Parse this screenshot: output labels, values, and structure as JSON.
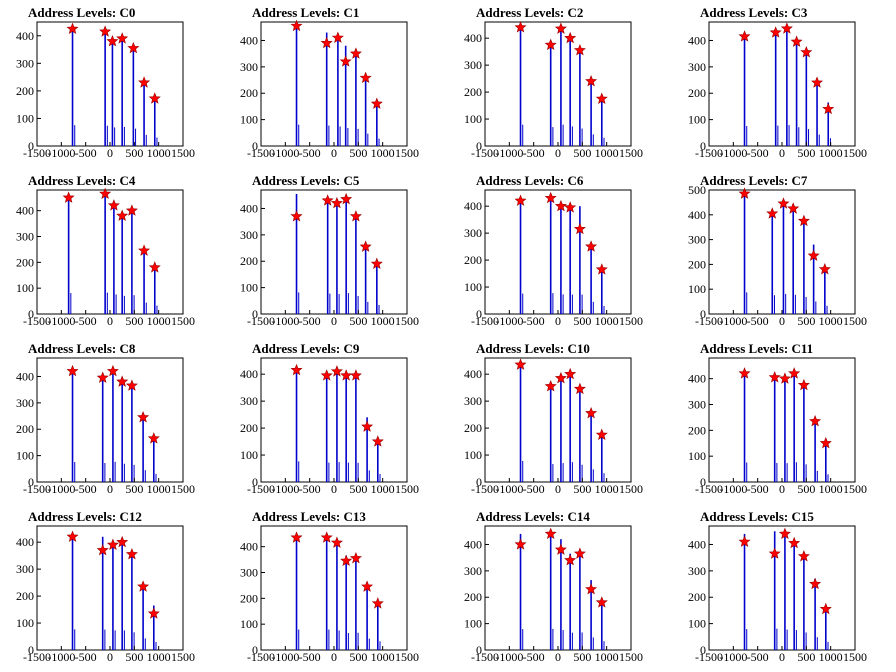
{
  "chart_data": [
    {
      "type": "bar",
      "title": "Address Levels: C0",
      "xlim": [
        -1500,
        1500
      ],
      "xticks": [
        -1500,
        -1000,
        -500,
        0,
        500,
        1000,
        1500
      ],
      "ylim": [
        0,
        450
      ],
      "yticks": [
        0,
        100,
        200,
        300,
        400
      ],
      "series": [
        {
          "x": [
            -770,
            -100,
            50,
            250,
            480,
            700,
            920
          ],
          "y": [
            420,
            410,
            375,
            385,
            350,
            225,
            170
          ]
        }
      ],
      "markers": [
        {
          "x": -770,
          "y": 425
        },
        {
          "x": -100,
          "y": 415
        },
        {
          "x": 50,
          "y": 380
        },
        {
          "x": 250,
          "y": 390
        },
        {
          "x": 480,
          "y": 355
        },
        {
          "x": 700,
          "y": 230
        },
        {
          "x": 920,
          "y": 172
        }
      ]
    },
    {
      "type": "bar",
      "title": "Address Levels: C1",
      "xlim": [
        -1500,
        1500
      ],
      "xticks": [
        -1500,
        -1000,
        -500,
        0,
        500,
        1000,
        1500
      ],
      "ylim": [
        0,
        470
      ],
      "yticks": [
        0,
        100,
        200,
        300,
        400
      ],
      "series": [
        {
          "x": [
            -770,
            -150,
            80,
            240,
            450,
            650,
            880
          ],
          "y": [
            450,
            430,
            410,
            380,
            360,
            260,
            155
          ]
        }
      ],
      "markers": [
        {
          "x": -770,
          "y": 455
        },
        {
          "x": -150,
          "y": 390
        },
        {
          "x": 80,
          "y": 410
        },
        {
          "x": 240,
          "y": 320
        },
        {
          "x": 450,
          "y": 350
        },
        {
          "x": 650,
          "y": 258
        },
        {
          "x": 880,
          "y": 160
        }
      ]
    },
    {
      "type": "bar",
      "title": "Address Levels: C2",
      "xlim": [
        -1500,
        1500
      ],
      "xticks": [
        -1500,
        -1000,
        -500,
        0,
        500,
        1000,
        1500
      ],
      "ylim": [
        0,
        460
      ],
      "yticks": [
        0,
        100,
        200,
        300,
        400
      ],
      "series": [
        {
          "x": [
            -770,
            -150,
            60,
            250,
            450,
            680,
            900
          ],
          "y": [
            440,
            390,
            440,
            405,
            360,
            240,
            170
          ]
        }
      ],
      "markers": [
        {
          "x": -770,
          "y": 440
        },
        {
          "x": -150,
          "y": 375
        },
        {
          "x": 60,
          "y": 435
        },
        {
          "x": 250,
          "y": 400
        },
        {
          "x": 450,
          "y": 355
        },
        {
          "x": 680,
          "y": 240
        },
        {
          "x": 900,
          "y": 175
        }
      ]
    },
    {
      "type": "bar",
      "title": "Address Levels: C3",
      "xlim": [
        -1500,
        1500
      ],
      "xticks": [
        -1500,
        -1000,
        -500,
        0,
        500,
        1000,
        1500
      ],
      "ylim": [
        0,
        470
      ],
      "yticks": [
        0,
        100,
        200,
        300,
        400
      ],
      "series": [
        {
          "x": [
            -770,
            -130,
            100,
            300,
            500,
            720,
            950
          ],
          "y": [
            420,
            430,
            440,
            395,
            355,
            240,
            165
          ]
        }
      ],
      "markers": [
        {
          "x": -770,
          "y": 415
        },
        {
          "x": -130,
          "y": 430
        },
        {
          "x": 100,
          "y": 445
        },
        {
          "x": 300,
          "y": 395
        },
        {
          "x": 500,
          "y": 355
        },
        {
          "x": 720,
          "y": 240
        },
        {
          "x": 950,
          "y": 140
        }
      ]
    },
    {
      "type": "bar",
      "title": "Address Levels: C4",
      "xlim": [
        -1500,
        1500
      ],
      "xticks": [
        -1500,
        -1000,
        -500,
        0,
        500,
        1000,
        1500
      ],
      "ylim": [
        0,
        480
      ],
      "yticks": [
        0,
        100,
        200,
        300,
        400
      ],
      "series": [
        {
          "x": [
            -850,
            -100,
            80,
            250,
            450,
            700,
            920
          ],
          "y": [
            450,
            460,
            420,
            390,
            405,
            245,
            180
          ]
        }
      ],
      "markers": [
        {
          "x": -850,
          "y": 450
        },
        {
          "x": -100,
          "y": 465
        },
        {
          "x": 80,
          "y": 420
        },
        {
          "x": 250,
          "y": 380
        },
        {
          "x": 450,
          "y": 400
        },
        {
          "x": 700,
          "y": 245
        },
        {
          "x": 920,
          "y": 180
        }
      ]
    },
    {
      "type": "bar",
      "title": "Address Levels: C5",
      "xlim": [
        -1500,
        1500
      ],
      "xticks": [
        -1500,
        -1000,
        -500,
        0,
        500,
        1000,
        1500
      ],
      "ylim": [
        0,
        470
      ],
      "yticks": [
        0,
        100,
        200,
        300,
        400
      ],
      "series": [
        {
          "x": [
            -770,
            -130,
            60,
            250,
            450,
            650,
            880
          ],
          "y": [
            455,
            430,
            420,
            440,
            380,
            255,
            190
          ]
        }
      ],
      "markers": [
        {
          "x": -770,
          "y": 370
        },
        {
          "x": -130,
          "y": 430
        },
        {
          "x": 60,
          "y": 420
        },
        {
          "x": 250,
          "y": 435
        },
        {
          "x": 450,
          "y": 370
        },
        {
          "x": 650,
          "y": 255
        },
        {
          "x": 880,
          "y": 190
        }
      ]
    },
    {
      "type": "bar",
      "title": "Address Levels: C6",
      "xlim": [
        -1500,
        1500
      ],
      "xticks": [
        -1500,
        -1000,
        -500,
        0,
        500,
        1000,
        1500
      ],
      "ylim": [
        0,
        460
      ],
      "yticks": [
        0,
        100,
        200,
        300,
        400
      ],
      "series": [
        {
          "x": [
            -770,
            -150,
            60,
            250,
            450,
            680,
            900
          ],
          "y": [
            420,
            430,
            405,
            400,
            400,
            250,
            165
          ]
        }
      ],
      "markers": [
        {
          "x": -770,
          "y": 420
        },
        {
          "x": -150,
          "y": 430
        },
        {
          "x": 60,
          "y": 400
        },
        {
          "x": 250,
          "y": 395
        },
        {
          "x": 450,
          "y": 315
        },
        {
          "x": 680,
          "y": 250
        },
        {
          "x": 900,
          "y": 165
        }
      ]
    },
    {
      "type": "bar",
      "title": "Address Levels: C7",
      "xlim": [
        -1500,
        1500
      ],
      "xticks": [
        -1500,
        -1000,
        -500,
        0,
        500,
        1000,
        1500
      ],
      "ylim": [
        0,
        500
      ],
      "yticks": [
        0,
        100,
        200,
        300,
        400,
        500
      ],
      "series": [
        {
          "x": [
            -770,
            -200,
            30,
            230,
            450,
            650,
            880
          ],
          "y": [
            485,
            420,
            450,
            430,
            380,
            280,
            185
          ]
        }
      ],
      "markers": [
        {
          "x": -770,
          "y": 485
        },
        {
          "x": -200,
          "y": 405
        },
        {
          "x": 30,
          "y": 445
        },
        {
          "x": 230,
          "y": 425
        },
        {
          "x": 450,
          "y": 375
        },
        {
          "x": 650,
          "y": 235
        },
        {
          "x": 880,
          "y": 180
        }
      ]
    },
    {
      "type": "bar",
      "title": "Address Levels: C8",
      "xlim": [
        -1500,
        1500
      ],
      "xticks": [
        -1500,
        -1000,
        -500,
        0,
        500,
        1000,
        1500
      ],
      "ylim": [
        0,
        470
      ],
      "yticks": [
        0,
        100,
        200,
        300,
        400
      ],
      "series": [
        {
          "x": [
            -770,
            -150,
            60,
            250,
            450,
            680,
            900
          ],
          "y": [
            420,
            400,
            425,
            385,
            360,
            250,
            170
          ]
        }
      ],
      "markers": [
        {
          "x": -770,
          "y": 420
        },
        {
          "x": -150,
          "y": 395
        },
        {
          "x": 60,
          "y": 420
        },
        {
          "x": 250,
          "y": 380
        },
        {
          "x": 450,
          "y": 365
        },
        {
          "x": 680,
          "y": 245
        },
        {
          "x": 900,
          "y": 165
        }
      ]
    },
    {
      "type": "bar",
      "title": "Address Levels: C9",
      "xlim": [
        -1500,
        1500
      ],
      "xticks": [
        -1500,
        -1000,
        -500,
        0,
        500,
        1000,
        1500
      ],
      "ylim": [
        0,
        460
      ],
      "yticks": [
        0,
        100,
        200,
        300,
        400
      ],
      "series": [
        {
          "x": [
            -770,
            -150,
            60,
            250,
            450,
            680,
            900
          ],
          "y": [
            425,
            400,
            410,
            400,
            395,
            240,
            165
          ]
        }
      ],
      "markers": [
        {
          "x": -770,
          "y": 415
        },
        {
          "x": -150,
          "y": 395
        },
        {
          "x": 60,
          "y": 410
        },
        {
          "x": 250,
          "y": 395
        },
        {
          "x": 450,
          "y": 395
        },
        {
          "x": 680,
          "y": 205
        },
        {
          "x": 900,
          "y": 150
        }
      ]
    },
    {
      "type": "bar",
      "title": "Address Levels: C10",
      "xlim": [
        -1500,
        1500
      ],
      "xticks": [
        -1500,
        -1000,
        -500,
        0,
        500,
        1000,
        1500
      ],
      "ylim": [
        0,
        460
      ],
      "yticks": [
        0,
        100,
        200,
        300,
        400
      ],
      "series": [
        {
          "x": [
            -770,
            -150,
            60,
            250,
            450,
            680,
            900
          ],
          "y": [
            435,
            370,
            390,
            410,
            355,
            260,
            180
          ]
        }
      ],
      "markers": [
        {
          "x": -770,
          "y": 435
        },
        {
          "x": -150,
          "y": 355
        },
        {
          "x": 60,
          "y": 385
        },
        {
          "x": 250,
          "y": 400
        },
        {
          "x": 450,
          "y": 345
        },
        {
          "x": 680,
          "y": 255
        },
        {
          "x": 900,
          "y": 175
        }
      ]
    },
    {
      "type": "bar",
      "title": "Address Levels: C11",
      "xlim": [
        -1500,
        1500
      ],
      "xticks": [
        -1500,
        -1000,
        -500,
        0,
        500,
        1000,
        1500
      ],
      "ylim": [
        0,
        480
      ],
      "yticks": [
        0,
        100,
        200,
        300,
        400
      ],
      "series": [
        {
          "x": [
            -770,
            -150,
            60,
            250,
            450,
            680,
            900
          ],
          "y": [
            420,
            410,
            405,
            425,
            380,
            240,
            165
          ]
        }
      ],
      "markers": [
        {
          "x": -770,
          "y": 420
        },
        {
          "x": -150,
          "y": 405
        },
        {
          "x": 60,
          "y": 400
        },
        {
          "x": 250,
          "y": 420
        },
        {
          "x": 450,
          "y": 375
        },
        {
          "x": 680,
          "y": 235
        },
        {
          "x": 900,
          "y": 150
        }
      ]
    },
    {
      "type": "bar",
      "title": "Address Levels: C12",
      "xlim": [
        -1500,
        1500
      ],
      "xticks": [
        -1500,
        -1000,
        -500,
        0,
        500,
        1000,
        1500
      ],
      "ylim": [
        0,
        460
      ],
      "yticks": [
        0,
        100,
        200,
        300,
        400
      ],
      "series": [
        {
          "x": [
            -770,
            -150,
            60,
            250,
            450,
            680,
            900
          ],
          "y": [
            425,
            420,
            405,
            405,
            365,
            240,
            165
          ]
        }
      ],
      "markers": [
        {
          "x": -770,
          "y": 420
        },
        {
          "x": -150,
          "y": 370
        },
        {
          "x": 60,
          "y": 390
        },
        {
          "x": 250,
          "y": 400
        },
        {
          "x": 450,
          "y": 355
        },
        {
          "x": 680,
          "y": 235
        },
        {
          "x": 900,
          "y": 135
        }
      ]
    },
    {
      "type": "bar",
      "title": "Address Levels: C13",
      "xlim": [
        -1500,
        1500
      ],
      "xticks": [
        -1500,
        -1000,
        -500,
        0,
        500,
        1000,
        1500
      ],
      "ylim": [
        0,
        480
      ],
      "yticks": [
        0,
        100,
        200,
        300,
        400
      ],
      "series": [
        {
          "x": [
            -770,
            -150,
            60,
            250,
            450,
            680,
            900
          ],
          "y": [
            440,
            440,
            420,
            365,
            370,
            245,
            185
          ]
        }
      ],
      "markers": [
        {
          "x": -770,
          "y": 435
        },
        {
          "x": -150,
          "y": 435
        },
        {
          "x": 60,
          "y": 415
        },
        {
          "x": 250,
          "y": 345
        },
        {
          "x": 450,
          "y": 355
        },
        {
          "x": 680,
          "y": 245
        },
        {
          "x": 900,
          "y": 180
        }
      ]
    },
    {
      "type": "bar",
      "title": "Address Levels: C14",
      "xlim": [
        -1500,
        1500
      ],
      "xticks": [
        -1500,
        -1000,
        -500,
        0,
        500,
        1000,
        1500
      ],
      "ylim": [
        0,
        470
      ],
      "yticks": [
        0,
        100,
        200,
        300,
        400
      ],
      "series": [
        {
          "x": [
            -770,
            -150,
            60,
            250,
            450,
            680,
            900
          ],
          "y": [
            440,
            445,
            420,
            365,
            370,
            265,
            185
          ]
        }
      ],
      "markers": [
        {
          "x": -770,
          "y": 400
        },
        {
          "x": -150,
          "y": 440
        },
        {
          "x": 60,
          "y": 380
        },
        {
          "x": 250,
          "y": 340
        },
        {
          "x": 450,
          "y": 365
        },
        {
          "x": 680,
          "y": 230
        },
        {
          "x": 900,
          "y": 180
        }
      ]
    },
    {
      "type": "bar",
      "title": "Address Levels: C15",
      "xlim": [
        -1500,
        1500
      ],
      "xticks": [
        -1500,
        -1000,
        -500,
        0,
        500,
        1000,
        1500
      ],
      "ylim": [
        0,
        470
      ],
      "yticks": [
        0,
        100,
        200,
        300,
        400
      ],
      "series": [
        {
          "x": [
            -770,
            -150,
            60,
            250,
            450,
            680,
            900
          ],
          "y": [
            440,
            450,
            430,
            420,
            370,
            270,
            170
          ]
        }
      ],
      "markers": [
        {
          "x": -770,
          "y": 410
        },
        {
          "x": -150,
          "y": 365
        },
        {
          "x": 60,
          "y": 440
        },
        {
          "x": 250,
          "y": 405
        },
        {
          "x": 450,
          "y": 355
        },
        {
          "x": 680,
          "y": 250
        },
        {
          "x": 900,
          "y": 155
        }
      ]
    }
  ],
  "colors": {
    "bar": "#0000cc",
    "marker": "#ff0000",
    "axis": "#000000"
  }
}
